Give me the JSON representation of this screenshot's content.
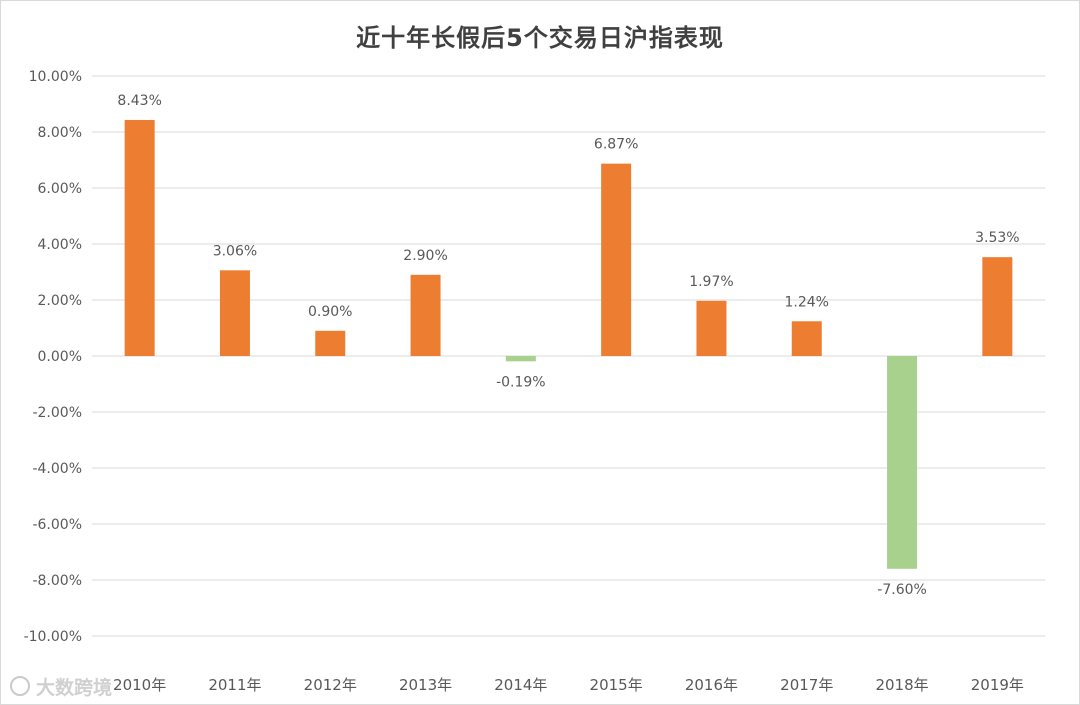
{
  "chart_data": {
    "type": "bar",
    "title": "近十年长假后5个交易日沪指表现",
    "xlabel": "",
    "ylabel": "",
    "ylim": [
      -10,
      10
    ],
    "y_ticks": [
      10,
      8,
      6,
      4,
      2,
      0,
      -2,
      -4,
      -6,
      -8,
      -10
    ],
    "y_tick_labels": [
      "10.00%",
      "8.00%",
      "6.00%",
      "4.00%",
      "2.00%",
      "0.00%",
      "-2.00%",
      "-4.00%",
      "-6.00%",
      "-8.00%",
      "-10.00%"
    ],
    "grid": true,
    "legend": "none",
    "categories": [
      "2010年",
      "2011年",
      "2012年",
      "2013年",
      "2014年",
      "2015年",
      "2016年",
      "2017年",
      "2018年",
      "2019年"
    ],
    "values": [
      8.43,
      3.06,
      0.9,
      2.9,
      -0.19,
      6.87,
      1.97,
      1.24,
      -7.6,
      3.53
    ],
    "value_labels": [
      "8.43%",
      "3.06%",
      "0.90%",
      "2.90%",
      "-0.19%",
      "6.87%",
      "1.97%",
      "1.24%",
      "-7.60%",
      "3.53%"
    ],
    "colors": {
      "positive": "#ED7D31",
      "negative": "#A9D18E",
      "grid": "#d9d9d9",
      "text": "#595959",
      "title": "#404040"
    }
  },
  "watermark": {
    "text": "大数跨境"
  }
}
